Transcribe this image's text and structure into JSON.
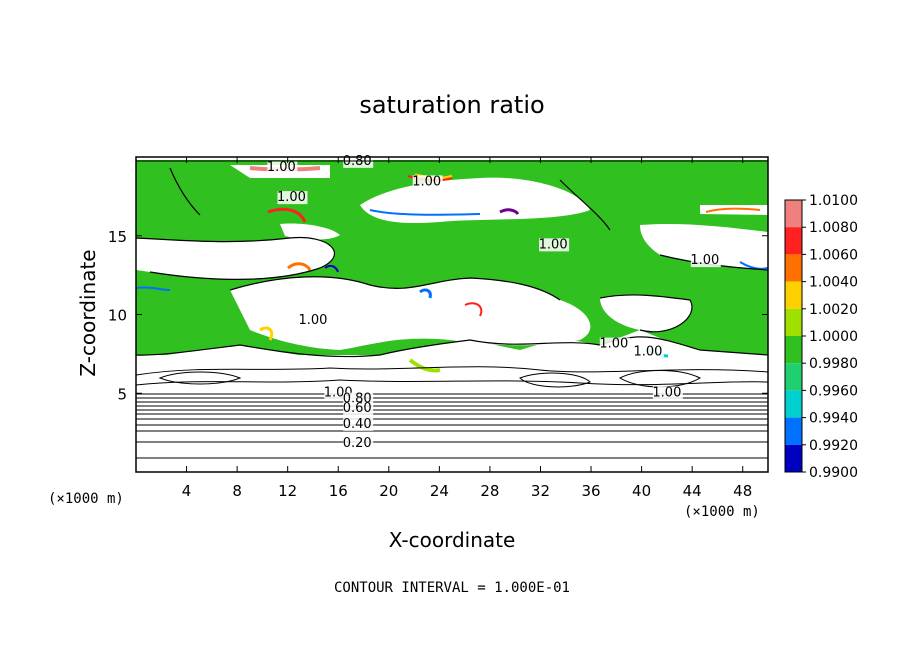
{
  "chart_data": {
    "type": "heatmap",
    "title": "saturation ratio",
    "xlabel": "X-coordinate",
    "ylabel": "Z-coordinate",
    "x_unit_label": "(×1000 m)",
    "y_unit_label": "(×1000 m)",
    "x_ticks": [
      4,
      8,
      12,
      16,
      20,
      24,
      28,
      32,
      36,
      40,
      44,
      48
    ],
    "y_ticks": [
      5,
      10,
      15
    ],
    "xlim": [
      0,
      50
    ],
    "ylim": [
      0,
      20
    ],
    "footer": "CONTOUR INTERVAL = 1.000E-01",
    "colorbar": {
      "levels": [
        "1.0100",
        "1.0080",
        "1.0060",
        "1.0040",
        "1.0020",
        "1.0000",
        "0.9980",
        "0.9960",
        "0.9940",
        "0.9920",
        "0.9900"
      ],
      "colors": [
        "#f08080",
        "#ff2020",
        "#ff7000",
        "#ffd000",
        "#a0e000",
        "#30c020",
        "#20d070",
        "#00d0d0",
        "#0070ff",
        "#0000c0",
        "#700090"
      ]
    },
    "contour_labels": [
      {
        "text": "1.00",
        "x": 11.5,
        "z": 19.1
      },
      {
        "text": "0.80",
        "x": 17.5,
        "z": 19.5
      },
      {
        "text": "1.00",
        "x": 23.0,
        "z": 18.2
      },
      {
        "text": "1.00",
        "x": 12.3,
        "z": 17.2
      },
      {
        "text": "1.00",
        "x": 33.0,
        "z": 14.2
      },
      {
        "text": "1.00",
        "x": 45.0,
        "z": 13.2
      },
      {
        "text": "1.00",
        "x": 14.0,
        "z": 9.4
      },
      {
        "text": "1.00",
        "x": 37.8,
        "z": 7.9
      },
      {
        "text": "1.00",
        "x": 40.5,
        "z": 7.4
      },
      {
        "text": "1.00",
        "x": 42.0,
        "z": 4.8
      },
      {
        "text": "1.00",
        "x": 16.0,
        "z": 4.8
      },
      {
        "text": "0.80",
        "x": 17.5,
        "z": 4.4
      },
      {
        "text": "0.60",
        "x": 17.5,
        "z": 3.8
      },
      {
        "text": "0.40",
        "x": 17.5,
        "z": 2.8
      },
      {
        "text": "0.20",
        "x": 17.5,
        "z": 1.6
      }
    ]
  }
}
